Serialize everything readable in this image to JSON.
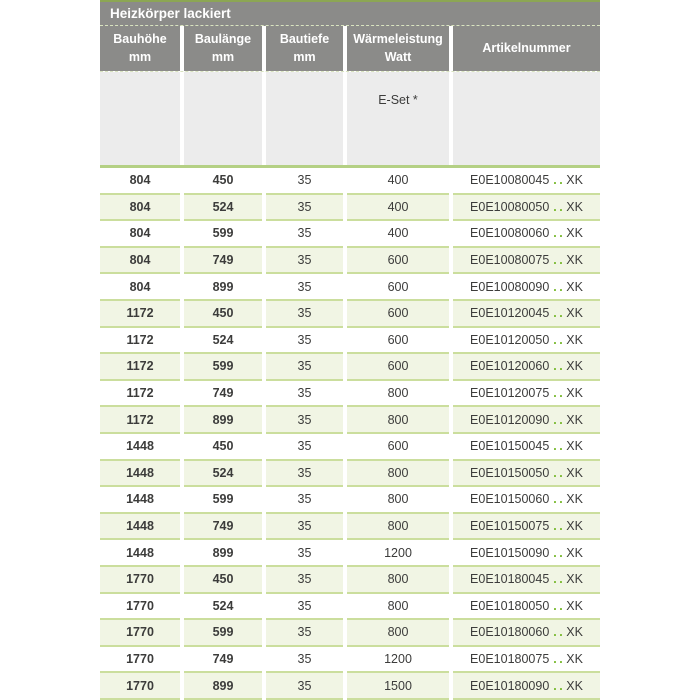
{
  "title": "Heizkörper lackiert",
  "columns": [
    {
      "label": "Bauhöhe",
      "unit": "mm"
    },
    {
      "label": "Baulänge",
      "unit": "mm"
    },
    {
      "label": "Bautiefe",
      "unit": "mm"
    },
    {
      "label": "Wärmeleistung",
      "unit": "Watt"
    },
    {
      "label": "Artikelnummer",
      "unit": ""
    }
  ],
  "subheader": {
    "eset_label": "E-Set *"
  },
  "artikel_dots": "..",
  "colors": {
    "header_gray": "#8b8b89",
    "subheader_gray": "#ececec",
    "alt_row_green": "#f1f5e4",
    "separator_green": "#cbde9d",
    "divider_green": "#b4d084",
    "accent_green": "#76b82a",
    "text": "#3c3c3b"
  },
  "rows": [
    {
      "bauhoehe": "804",
      "baulaenge": "450",
      "bautiefe": "35",
      "watt": "400",
      "artikel": "E0E10080045",
      "suffix": "XK"
    },
    {
      "bauhoehe": "804",
      "baulaenge": "524",
      "bautiefe": "35",
      "watt": "400",
      "artikel": "E0E10080050",
      "suffix": "XK"
    },
    {
      "bauhoehe": "804",
      "baulaenge": "599",
      "bautiefe": "35",
      "watt": "400",
      "artikel": "E0E10080060",
      "suffix": "XK"
    },
    {
      "bauhoehe": "804",
      "baulaenge": "749",
      "bautiefe": "35",
      "watt": "600",
      "artikel": "E0E10080075",
      "suffix": "XK"
    },
    {
      "bauhoehe": "804",
      "baulaenge": "899",
      "bautiefe": "35",
      "watt": "600",
      "artikel": "E0E10080090",
      "suffix": "XK"
    },
    {
      "bauhoehe": "1172",
      "baulaenge": "450",
      "bautiefe": "35",
      "watt": "600",
      "artikel": "E0E10120045",
      "suffix": "XK"
    },
    {
      "bauhoehe": "1172",
      "baulaenge": "524",
      "bautiefe": "35",
      "watt": "600",
      "artikel": "E0E10120050",
      "suffix": "XK"
    },
    {
      "bauhoehe": "1172",
      "baulaenge": "599",
      "bautiefe": "35",
      "watt": "600",
      "artikel": "E0E10120060",
      "suffix": "XK"
    },
    {
      "bauhoehe": "1172",
      "baulaenge": "749",
      "bautiefe": "35",
      "watt": "800",
      "artikel": "E0E10120075",
      "suffix": "XK"
    },
    {
      "bauhoehe": "1172",
      "baulaenge": "899",
      "bautiefe": "35",
      "watt": "800",
      "artikel": "E0E10120090",
      "suffix": "XK"
    },
    {
      "bauhoehe": "1448",
      "baulaenge": "450",
      "bautiefe": "35",
      "watt": "600",
      "artikel": "E0E10150045",
      "suffix": "XK"
    },
    {
      "bauhoehe": "1448",
      "baulaenge": "524",
      "bautiefe": "35",
      "watt": "800",
      "artikel": "E0E10150050",
      "suffix": "XK"
    },
    {
      "bauhoehe": "1448",
      "baulaenge": "599",
      "bautiefe": "35",
      "watt": "800",
      "artikel": "E0E10150060",
      "suffix": "XK"
    },
    {
      "bauhoehe": "1448",
      "baulaenge": "749",
      "bautiefe": "35",
      "watt": "800",
      "artikel": "E0E10150075",
      "suffix": "XK"
    },
    {
      "bauhoehe": "1448",
      "baulaenge": "899",
      "bautiefe": "35",
      "watt": "1200",
      "artikel": "E0E10150090",
      "suffix": "XK"
    },
    {
      "bauhoehe": "1770",
      "baulaenge": "450",
      "bautiefe": "35",
      "watt": "800",
      "artikel": "E0E10180045",
      "suffix": "XK"
    },
    {
      "bauhoehe": "1770",
      "baulaenge": "524",
      "bautiefe": "35",
      "watt": "800",
      "artikel": "E0E10180050",
      "suffix": "XK"
    },
    {
      "bauhoehe": "1770",
      "baulaenge": "599",
      "bautiefe": "35",
      "watt": "800",
      "artikel": "E0E10180060",
      "suffix": "XK"
    },
    {
      "bauhoehe": "1770",
      "baulaenge": "749",
      "bautiefe": "35",
      "watt": "1200",
      "artikel": "E0E10180075",
      "suffix": "XK"
    },
    {
      "bauhoehe": "1770",
      "baulaenge": "899",
      "bautiefe": "35",
      "watt": "1500",
      "artikel": "E0E10180090",
      "suffix": "XK"
    }
  ]
}
